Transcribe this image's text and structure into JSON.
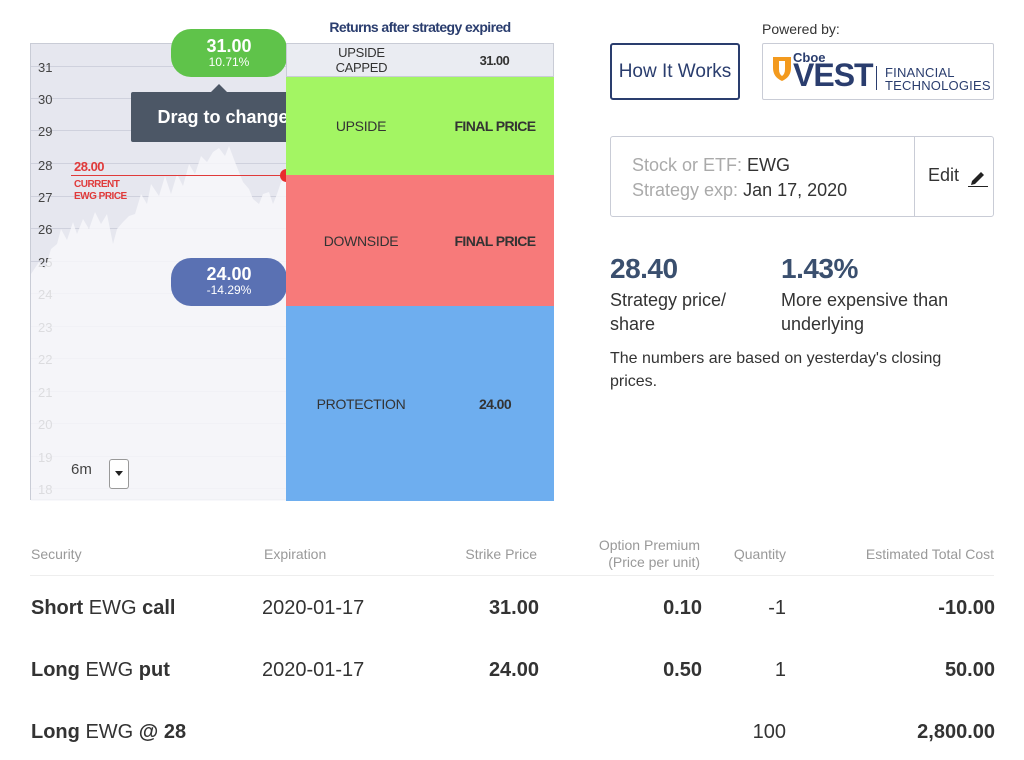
{
  "chart": {
    "y_ticks": [
      "31",
      "30",
      "29",
      "28",
      "27",
      "26",
      "25",
      "24",
      "23",
      "22",
      "21",
      "20",
      "19",
      "18"
    ],
    "upper_bubble": {
      "price": "31.00",
      "pct": "10.71%"
    },
    "lower_bubble": {
      "price": "24.00",
      "pct": "-14.29%"
    },
    "tooltip": "Drag to change",
    "current_price": "28.00",
    "current_label_1": "CURRENT",
    "current_label_2": "EWG PRICE",
    "range": "6m",
    "line_color": "#e03a3a",
    "area_color": "#ffffff"
  },
  "returns": {
    "title": "Returns after strategy expired",
    "capped": {
      "label1": "UPSIDE",
      "label2": "CAPPED",
      "value": "31.00"
    },
    "upside": {
      "label": "UPSIDE",
      "value": "FINAL PRICE",
      "color": "#a3f563"
    },
    "downside": {
      "label": "DOWNSIDE",
      "value": "FINAL PRICE",
      "color": "#f77a7a"
    },
    "protection": {
      "label": "PROTECTION",
      "value": "24.00",
      "color": "#6eaeef"
    }
  },
  "header": {
    "how_it_works": "How It Works",
    "powered_by": "Powered by:",
    "brand_top": "Cboe",
    "brand_main": "VEST",
    "brand_sub1": "FINANCIAL",
    "brand_sub2": "TECHNOLOGIES",
    "brand_color": "#2a3d6e",
    "shield_color": "#f39a1e"
  },
  "stock": {
    "stock_key": "Stock or ETF:",
    "stock_val": "EWG",
    "exp_key": "Strategy exp:",
    "exp_val": "Jan 17, 2020",
    "edit": "Edit"
  },
  "stats": {
    "price": "28.40",
    "price_lbl1": "Strategy price/",
    "price_lbl2": "share",
    "pct": "1.43%",
    "pct_lbl1": "More expensive than",
    "pct_lbl2": "underlying",
    "note": "The numbers are based on yesterday's closing prices."
  },
  "table": {
    "headers": {
      "security": "Security",
      "expiration": "Expiration",
      "strike": "Strike Price",
      "premium1": "Option Premium",
      "premium2": "(Price per unit)",
      "quantity": "Quantity",
      "total": "Estimated Total Cost"
    },
    "rows": [
      {
        "pre": "Short",
        "sym": "EWG",
        "post": "call",
        "exp": "2020-01-17",
        "strike": "31.00",
        "premium": "0.10",
        "qty": "-1",
        "total": "-10.00"
      },
      {
        "pre": "Long",
        "sym": "EWG",
        "post": "put",
        "exp": "2020-01-17",
        "strike": "24.00",
        "premium": "0.50",
        "qty": "1",
        "total": "50.00"
      },
      {
        "pre": "Long",
        "sym": "EWG",
        "post": "@ 28",
        "exp": "",
        "strike": "",
        "premium": "",
        "qty": "100",
        "total": "2,800.00"
      }
    ]
  }
}
